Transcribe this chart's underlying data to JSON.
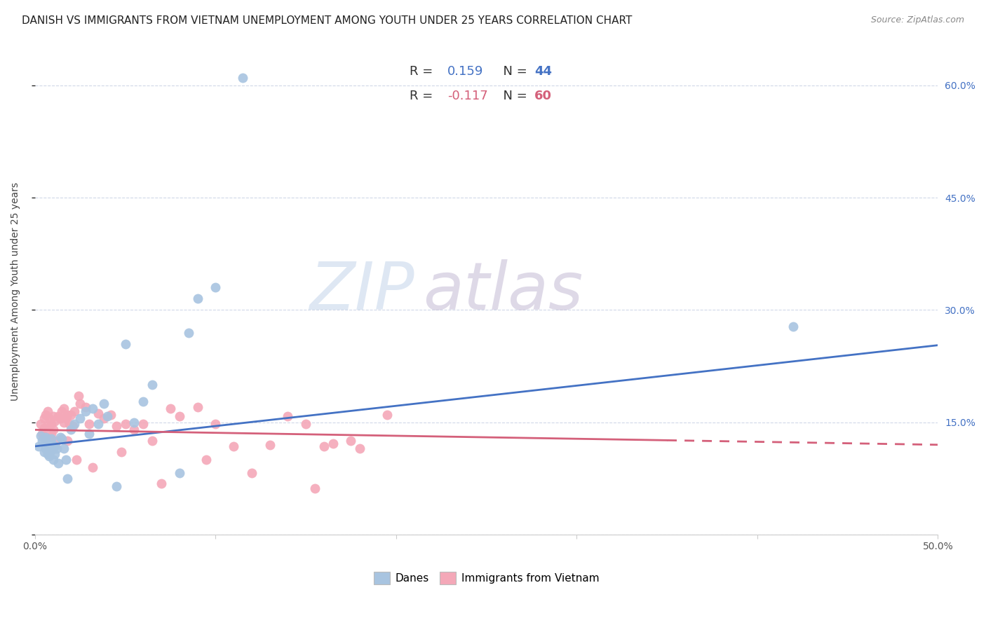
{
  "title": "DANISH VS IMMIGRANTS FROM VIETNAM UNEMPLOYMENT AMONG YOUTH UNDER 25 YEARS CORRELATION CHART",
  "source": "Source: ZipAtlas.com",
  "ylabel": "Unemployment Among Youth under 25 years",
  "xlim": [
    0.0,
    0.5
  ],
  "ylim": [
    0.0,
    0.65
  ],
  "xtick_vals": [
    0.0,
    0.1,
    0.2,
    0.3,
    0.4,
    0.5
  ],
  "xtick_labels": [
    "0.0%",
    "",
    "",
    "",
    "",
    "50.0%"
  ],
  "ytick_vals_right": [
    0.15,
    0.3,
    0.45,
    0.6
  ],
  "ytick_labels_right": [
    "15.0%",
    "30.0%",
    "45.0%",
    "60.0%"
  ],
  "danes_color": "#a8c4e0",
  "vietnam_color": "#f4a8b8",
  "danes_line_color": "#4472c4",
  "vietnam_line_color": "#d4607a",
  "danes_line_intercept": 0.118,
  "danes_line_slope": 0.27,
  "vietnam_line_intercept": 0.14,
  "vietnam_line_slope": -0.04,
  "danes_x": [
    0.002,
    0.003,
    0.004,
    0.005,
    0.005,
    0.006,
    0.006,
    0.007,
    0.007,
    0.008,
    0.008,
    0.009,
    0.009,
    0.01,
    0.01,
    0.011,
    0.011,
    0.012,
    0.013,
    0.014,
    0.015,
    0.016,
    0.017,
    0.018,
    0.02,
    0.022,
    0.025,
    0.028,
    0.03,
    0.032,
    0.035,
    0.038,
    0.04,
    0.045,
    0.05,
    0.055,
    0.06,
    0.065,
    0.08,
    0.085,
    0.09,
    0.1,
    0.115,
    0.42
  ],
  "danes_y": [
    0.118,
    0.132,
    0.125,
    0.11,
    0.128,
    0.115,
    0.13,
    0.108,
    0.122,
    0.105,
    0.118,
    0.112,
    0.128,
    0.1,
    0.12,
    0.108,
    0.118,
    0.115,
    0.095,
    0.13,
    0.128,
    0.115,
    0.1,
    0.075,
    0.14,
    0.148,
    0.155,
    0.165,
    0.135,
    0.168,
    0.148,
    0.175,
    0.158,
    0.065,
    0.255,
    0.15,
    0.178,
    0.2,
    0.082,
    0.27,
    0.315,
    0.33,
    0.61,
    0.278
  ],
  "vietnam_x": [
    0.003,
    0.004,
    0.005,
    0.005,
    0.006,
    0.006,
    0.007,
    0.007,
    0.008,
    0.008,
    0.009,
    0.009,
    0.01,
    0.01,
    0.011,
    0.012,
    0.013,
    0.014,
    0.015,
    0.016,
    0.016,
    0.017,
    0.018,
    0.018,
    0.019,
    0.02,
    0.021,
    0.022,
    0.023,
    0.024,
    0.025,
    0.028,
    0.03,
    0.032,
    0.035,
    0.038,
    0.042,
    0.045,
    0.048,
    0.05,
    0.055,
    0.06,
    0.065,
    0.07,
    0.075,
    0.08,
    0.09,
    0.095,
    0.1,
    0.11,
    0.12,
    0.13,
    0.14,
    0.15,
    0.155,
    0.16,
    0.165,
    0.175,
    0.18,
    0.195
  ],
  "vietnam_y": [
    0.148,
    0.135,
    0.142,
    0.155,
    0.128,
    0.16,
    0.145,
    0.165,
    0.13,
    0.155,
    0.135,
    0.148,
    0.14,
    0.158,
    0.152,
    0.125,
    0.158,
    0.155,
    0.165,
    0.15,
    0.168,
    0.155,
    0.125,
    0.16,
    0.148,
    0.16,
    0.145,
    0.165,
    0.1,
    0.185,
    0.175,
    0.17,
    0.148,
    0.09,
    0.162,
    0.155,
    0.16,
    0.145,
    0.11,
    0.148,
    0.14,
    0.148,
    0.125,
    0.068,
    0.168,
    0.158,
    0.17,
    0.1,
    0.148,
    0.118,
    0.082,
    0.12,
    0.158,
    0.148,
    0.062,
    0.118,
    0.122,
    0.125,
    0.115,
    0.16
  ],
  "background_color": "#ffffff",
  "grid_color": "#d0d8e8",
  "bottom_legend_danes": "Danes",
  "bottom_legend_vietnam": "Immigrants from Vietnam",
  "title_fontsize": 11,
  "axis_label_fontsize": 10,
  "tick_fontsize": 10,
  "right_tick_color": "#4472c4",
  "legend_fontsize": 13
}
